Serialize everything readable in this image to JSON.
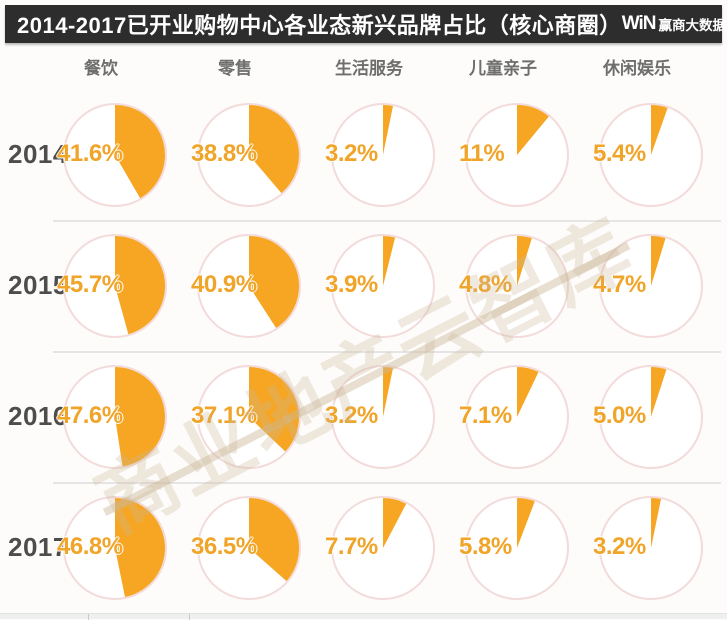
{
  "title_bar": {
    "title": "2014-2017已开业购物中心各业态新兴品牌占比（核心商圈）",
    "logo_mark": "WiN",
    "logo_text": "赢商大数据"
  },
  "watermark": "商业地产云智库",
  "colors": {
    "title_bar_bg": "#2d2d2d",
    "title_text": "#ffffff",
    "pie_fill": "#f6a623",
    "pct_text": "#f0a428",
    "circle_stroke": "#f3dbdb",
    "year_text": "#4d4d4d",
    "header_text": "#6e6e6e",
    "separator": "#e0e0e0",
    "page_bg": "#fdfcfa",
    "watermark_text": "rgba(203,183,152,0.30)"
  },
  "chart_data": {
    "type": "pie",
    "title": "2014-2017已开业购物中心各业态新兴品牌占比（核心商圈）",
    "unit": "%",
    "layout": "grid of small pie charts: rows = years, columns = business categories; each pie wedge starts at 12 o'clock and sweeps clockwise",
    "columns": [
      "餐饮",
      "零售",
      "生活服务",
      "儿童亲子",
      "休闲娱乐"
    ],
    "rows": [
      {
        "year": "2014",
        "values": [
          41.6,
          38.8,
          3.2,
          11,
          5.4
        ],
        "labels": [
          "41.6%",
          "38.8%",
          "3.2%",
          "11%",
          "5.4%"
        ]
      },
      {
        "year": "2015",
        "values": [
          45.7,
          40.9,
          3.9,
          4.8,
          4.7
        ],
        "labels": [
          "45.7%",
          "40.9%",
          "3.9%",
          "4.8%",
          "4.7%"
        ]
      },
      {
        "year": "2016",
        "values": [
          47.6,
          37.1,
          3.2,
          7.1,
          5.0
        ],
        "labels": [
          "47.6%",
          "37.1%",
          "3.2%",
          "7.1%",
          "5.0%"
        ]
      },
      {
        "year": "2017",
        "values": [
          46.8,
          36.5,
          7.7,
          5.8,
          3.2
        ],
        "labels": [
          "46.8%",
          "36.5%",
          "7.7%",
          "5.8%",
          "3.2%"
        ]
      }
    ]
  }
}
